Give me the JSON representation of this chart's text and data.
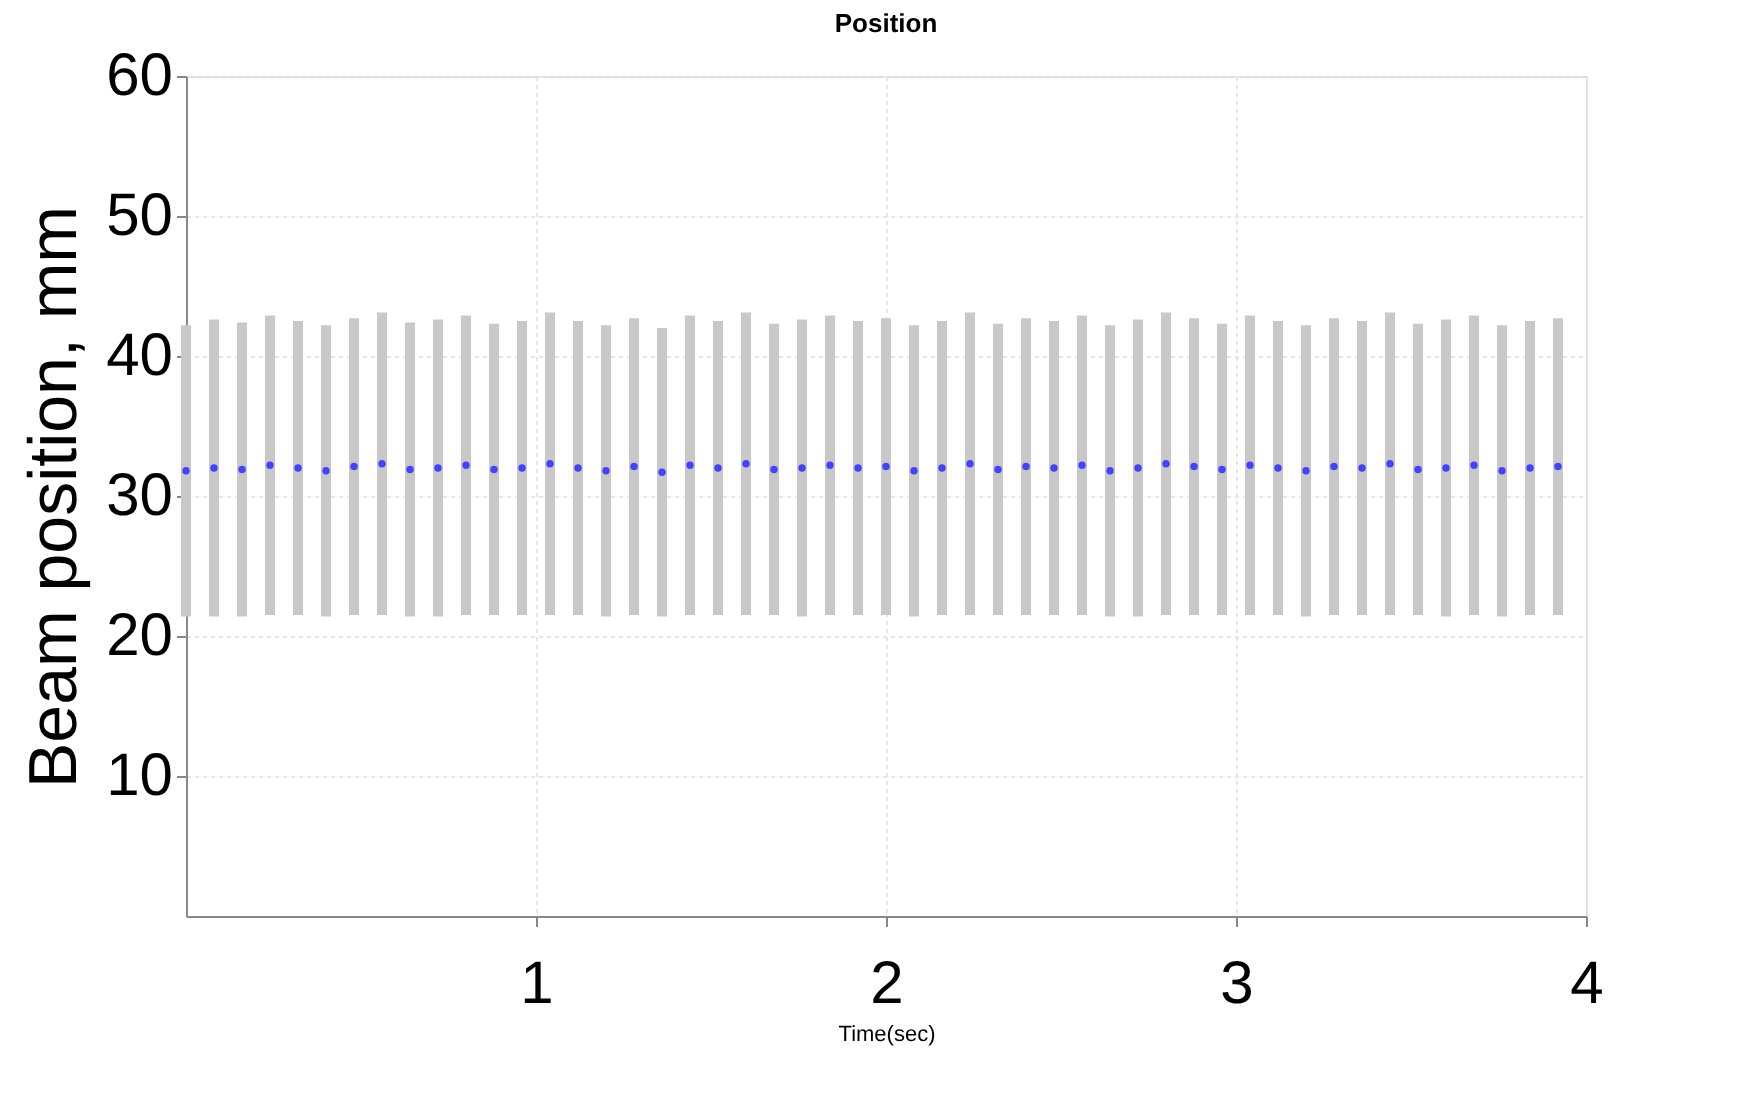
{
  "chart_data": {
    "type": "scatter",
    "title": "Position",
    "xlabel": "Time(sec)",
    "ylabel": "Beam position, mm",
    "x": [
      0,
      0.08,
      0.16,
      0.24,
      0.32,
      0.4,
      0.48,
      0.56,
      0.64,
      0.72,
      0.8,
      0.88,
      0.96,
      1.04,
      1.12,
      1.2,
      1.28,
      1.36,
      1.44,
      1.52,
      1.6,
      1.68,
      1.76,
      1.84,
      1.92,
      2,
      2.08,
      2.16,
      2.24,
      2.32,
      2.4,
      2.48,
      2.56,
      2.64,
      2.72,
      2.8,
      2.88,
      2.96,
      3.04,
      3.12,
      3.2,
      3.28,
      3.36,
      3.44,
      3.52,
      3.6,
      3.68,
      3.76,
      3.84,
      3.92
    ],
    "series": [
      {
        "color": "#4444ff",
        "values": [
          31.8,
          32,
          31.9,
          32.2,
          32,
          31.8,
          32.1,
          32.3,
          31.9,
          32,
          32.2,
          31.9,
          32,
          32.3,
          32,
          31.8,
          32.1,
          31.7,
          32.2,
          32,
          32.3,
          31.9,
          32,
          32.2,
          32,
          32.1,
          31.8,
          32,
          32.3,
          31.9,
          32.1,
          32,
          32.2,
          31.8,
          32,
          32.3,
          32.1,
          31.9,
          32.2,
          32,
          31.8,
          32.1,
          32,
          32.3,
          31.9,
          32,
          32.2,
          31.8,
          32,
          32.1
        ],
        "errors": [
          10.4,
          10.6,
          10.5,
          10.7,
          10.5,
          10.4,
          10.6,
          10.8,
          10.5,
          10.6,
          10.7,
          10.4,
          10.5,
          10.8,
          10.5,
          10.4,
          10.6,
          10.3,
          10.7,
          10.5,
          10.8,
          10.4,
          10.6,
          10.7,
          10.5,
          10.6,
          10.4,
          10.5,
          10.8,
          10.4,
          10.6,
          10.5,
          10.7,
          10.4,
          10.6,
          10.8,
          10.6,
          10.4,
          10.7,
          10.5,
          10.4,
          10.6,
          10.5,
          10.8,
          10.4,
          10.6,
          10.7,
          10.4,
          10.5,
          10.6
        ]
      }
    ],
    "xlim": [
      0,
      4
    ],
    "xticks": [
      1,
      2,
      3,
      4
    ],
    "ylim": [
      0,
      60
    ],
    "yticks": [
      10,
      20,
      30,
      40,
      50,
      60
    ],
    "grid": true,
    "marker": "circle"
  }
}
